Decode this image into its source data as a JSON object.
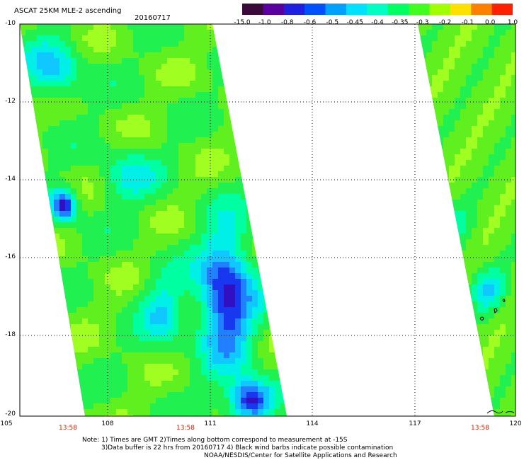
{
  "header": {
    "title": "ASCAT 25KM MLE-2 ascending",
    "date": "20160717"
  },
  "colorbar": {
    "labels": [
      "-15.0",
      "-1.0",
      "-0.8",
      "-0.6",
      "-0.5",
      "-0.45",
      "-0.4",
      "-0.35",
      "-0.3",
      "-0.2",
      "-0.1",
      "0.0",
      "1.0"
    ],
    "colors": [
      "#3a0a3a",
      "#5a00a0",
      "#2020e0",
      "#0050ff",
      "#00a0ff",
      "#00e0ff",
      "#00ffc0",
      "#00ff60",
      "#40ff20",
      "#a0ff00",
      "#ffe000",
      "#ff8000",
      "#ff2000"
    ]
  },
  "map": {
    "y_axis_labels": [
      "-10",
      "-12",
      "-14",
      "-16",
      "-18",
      "-20"
    ],
    "x_axis_labels": [
      "105",
      "108",
      "111",
      "114",
      "117",
      "120"
    ],
    "pass_times": [
      "13:58",
      "13:58",
      "13:58"
    ],
    "lat_range": [
      -20,
      -10
    ],
    "lon_range": [
      105,
      120
    ]
  },
  "notes": {
    "line1": "Note: 1) Times are GMT 2)Times along bottom correspond to measurement at -15S",
    "line2": "3)Data buffer is 22 hrs from 20160717 4) Black wind barbs indicate possible contamination",
    "line3": "NOAA/NESDIS/Center for Satellite Applications and Research"
  }
}
